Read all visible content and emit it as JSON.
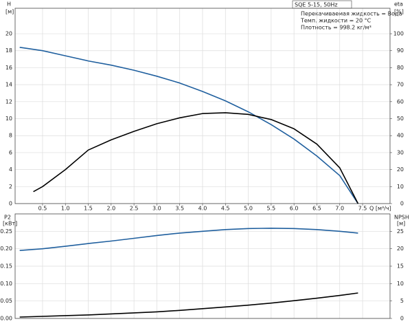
{
  "chart_data": [
    {
      "type": "line",
      "title": "SQE 5-15, 50Hz",
      "annotations": [
        "Перекачиваемая жидкость = Вода",
        "Темп. жидкости = 20 °C",
        "Плотность = 998.2 кг/м³"
      ],
      "y_label": "H",
      "y_unit": "[м]",
      "y2_label": "eta",
      "y2_unit": "[%]",
      "x_label": "Q [м³/ч]",
      "xlim": [
        -0.1,
        8.1
      ],
      "xticks": [
        0.5,
        {
          "value": 1,
          "label": "1.0"
        },
        1.5,
        {
          "value": 2,
          "label": "2.0"
        },
        2.5,
        {
          "value": 3,
          "label": "3.0"
        },
        3.5,
        {
          "value": 4,
          "label": "4.0"
        },
        4.5,
        {
          "value": 5,
          "label": "5.0"
        },
        5.5,
        {
          "value": 6,
          "label": "6.0"
        },
        6.5,
        {
          "value": 7,
          "label": "7.0"
        },
        7.5
      ],
      "ylim": [
        0,
        23
      ],
      "yticks": [
        0,
        2,
        4,
        6,
        8,
        10,
        12,
        14,
        16,
        18,
        20
      ],
      "y2lim": [
        0,
        115
      ],
      "y2ticks": [
        0,
        10,
        20,
        30,
        40,
        50,
        60,
        70,
        80,
        90,
        100
      ],
      "grid": true,
      "series": [
        {
          "color": "#1f5f9e",
          "x": [
            0,
            0.5,
            1,
            1.5,
            2,
            2.5,
            3,
            3.5,
            4,
            4.5,
            5,
            5.5,
            6,
            6.5,
            7,
            7.4
          ],
          "values": [
            18.4,
            18.0,
            17.4,
            16.8,
            16.3,
            15.7,
            15.0,
            14.2,
            13.2,
            12.1,
            10.8,
            9.3,
            7.6,
            5.6,
            3.3,
            0
          ]
        },
        {
          "color": "#000000",
          "axis": "y2",
          "x": [
            0.3,
            0.5,
            1,
            1.5,
            2,
            2.5,
            3,
            3.5,
            4,
            4.5,
            5,
            5.5,
            6,
            6.5,
            7,
            7.4
          ],
          "values": [
            7,
            10,
            20,
            31.5,
            37.5,
            42.5,
            47,
            50.5,
            53,
            53.5,
            52.5,
            49.5,
            44,
            35,
            21,
            0
          ]
        }
      ]
    },
    {
      "type": "line",
      "y_label": "P2",
      "y_unit": "[кВт]",
      "y2_label": "NPSH",
      "y2_unit": "[м]",
      "xlim": [
        -0.1,
        8.1
      ],
      "ylim": [
        0,
        0.3
      ],
      "yticks": [
        {
          "value": 0,
          "label": "0.00"
        },
        {
          "value": 0.05,
          "label": "0.05"
        },
        {
          "value": 0.1,
          "label": "0.10"
        },
        {
          "value": 0.15,
          "label": "0.15"
        },
        {
          "value": 0.2,
          "label": "0.20"
        },
        {
          "value": 0.25,
          "label": "0.25"
        }
      ],
      "y2lim": [
        0,
        30
      ],
      "y2ticks": [
        0,
        5,
        10,
        15,
        20,
        25
      ],
      "grid": true,
      "series": [
        {
          "color": "#1f5f9e",
          "x": [
            0,
            0.5,
            1,
            1.5,
            2,
            2.5,
            3,
            3.5,
            4,
            4.5,
            5,
            5.5,
            6,
            6.5,
            7,
            7.4
          ],
          "values": [
            0.195,
            0.2,
            0.207,
            0.215,
            0.222,
            0.23,
            0.238,
            0.245,
            0.25,
            0.255,
            0.258,
            0.259,
            0.258,
            0.255,
            0.25,
            0.245
          ]
        },
        {
          "color": "#000000",
          "axis": "y2",
          "x": [
            0,
            1,
            1.5,
            2,
            2.5,
            3,
            3.5,
            4,
            4.5,
            5,
            5.5,
            6,
            6.5,
            7,
            7.4
          ],
          "values": [
            0.4,
            0.8,
            1.0,
            1.3,
            1.6,
            1.9,
            2.3,
            2.8,
            3.3,
            3.8,
            4.4,
            5.1,
            5.8,
            6.6,
            7.3
          ]
        }
      ]
    }
  ]
}
